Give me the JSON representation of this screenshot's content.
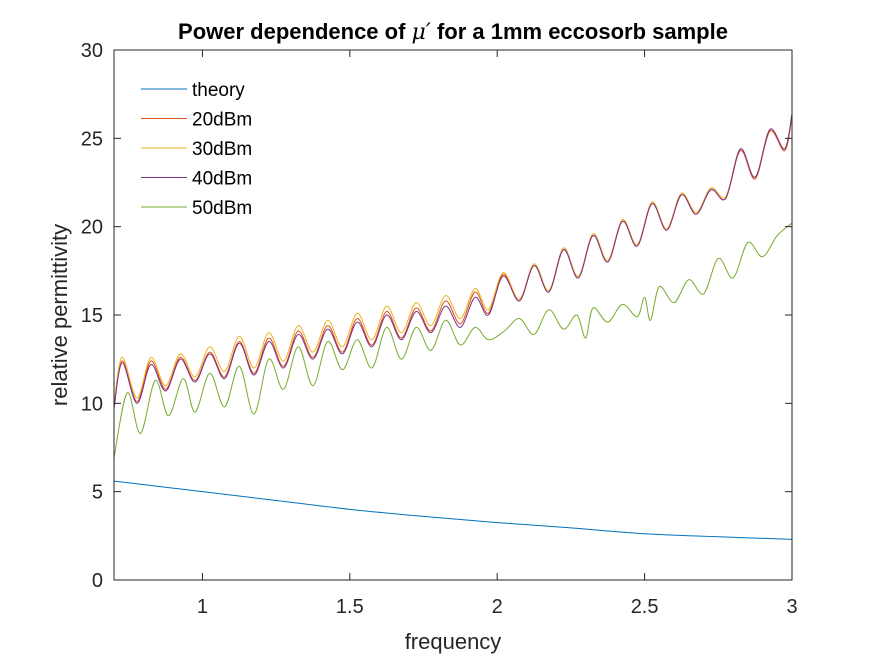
{
  "chart_data": {
    "type": "line",
    "title": {
      "before": "Power dependence of ",
      "symbol": "μ′",
      "after": " for a 1mm eccosorb sample"
    },
    "xlabel": "frequency",
    "ylabel": "relative permittivity",
    "xlim": [
      0.7,
      3
    ],
    "ylim": [
      0,
      30
    ],
    "xticks": [
      1,
      1.5,
      2,
      2.5,
      3
    ],
    "xtick_labels": [
      "1",
      "1.5",
      "2",
      "2.5",
      "3"
    ],
    "yticks": [
      0,
      5,
      10,
      15,
      20,
      25,
      30
    ],
    "ytick_labels": [
      "0",
      "5",
      "10",
      "15",
      "20",
      "25",
      "30"
    ],
    "grid": false,
    "legend_placement": "top-left",
    "series": [
      {
        "name": "theory",
        "color": "#0072BD",
        "points": [
          [
            0.7,
            5.6
          ],
          [
            0.85,
            5.3
          ],
          [
            1.0,
            5.0
          ],
          [
            1.25,
            4.5
          ],
          [
            1.5,
            4.0
          ],
          [
            1.75,
            3.6
          ],
          [
            2.0,
            3.25
          ],
          [
            2.25,
            2.95
          ],
          [
            2.5,
            2.62
          ],
          [
            2.75,
            2.45
          ],
          [
            3.0,
            2.3
          ]
        ]
      },
      {
        "name": "20dBm",
        "color": "#D95319",
        "points": [
          [
            0.7,
            9.8
          ],
          [
            0.728,
            12.4
          ],
          [
            0.778,
            10.1
          ],
          [
            0.825,
            12.4
          ],
          [
            0.875,
            10.8
          ],
          [
            0.925,
            12.6
          ],
          [
            0.975,
            11.3
          ],
          [
            1.025,
            12.9
          ],
          [
            1.075,
            11.5
          ],
          [
            1.125,
            13.5
          ],
          [
            1.175,
            11.7
          ],
          [
            1.225,
            13.7
          ],
          [
            1.275,
            12.1
          ],
          [
            1.325,
            14.1
          ],
          [
            1.375,
            12.6
          ],
          [
            1.425,
            14.4
          ],
          [
            1.475,
            12.9
          ],
          [
            1.525,
            14.8
          ],
          [
            1.575,
            13.3
          ],
          [
            1.625,
            15.2
          ],
          [
            1.675,
            13.7
          ],
          [
            1.725,
            15.4
          ],
          [
            1.775,
            14.1
          ],
          [
            1.825,
            15.8
          ],
          [
            1.875,
            14.5
          ],
          [
            1.925,
            16.3
          ],
          [
            1.97,
            15.1
          ],
          [
            2.02,
            17.3
          ],
          [
            2.075,
            15.8
          ],
          [
            2.125,
            17.8
          ],
          [
            2.175,
            16.3
          ],
          [
            2.225,
            18.7
          ],
          [
            2.275,
            17.1
          ],
          [
            2.325,
            19.5
          ],
          [
            2.375,
            18.0
          ],
          [
            2.425,
            20.3
          ],
          [
            2.475,
            18.9
          ],
          [
            2.525,
            21.3
          ],
          [
            2.575,
            19.8
          ],
          [
            2.625,
            21.8
          ],
          [
            2.675,
            20.7
          ],
          [
            2.725,
            22.1
          ],
          [
            2.775,
            21.6
          ],
          [
            2.825,
            24.3
          ],
          [
            2.875,
            22.7
          ],
          [
            2.925,
            25.4
          ],
          [
            2.975,
            24.3
          ],
          [
            3.0,
            26.2
          ]
        ]
      },
      {
        "name": "30dBm",
        "color": "#EDB120",
        "points": [
          [
            0.7,
            10.0
          ],
          [
            0.728,
            12.6
          ],
          [
            0.778,
            10.3
          ],
          [
            0.825,
            12.6
          ],
          [
            0.875,
            11.0
          ],
          [
            0.925,
            12.8
          ],
          [
            0.975,
            11.5
          ],
          [
            1.025,
            13.2
          ],
          [
            1.075,
            11.8
          ],
          [
            1.125,
            13.8
          ],
          [
            1.175,
            12.0
          ],
          [
            1.225,
            14.0
          ],
          [
            1.275,
            12.4
          ],
          [
            1.325,
            14.4
          ],
          [
            1.375,
            12.9
          ],
          [
            1.425,
            14.7
          ],
          [
            1.475,
            13.2
          ],
          [
            1.525,
            15.1
          ],
          [
            1.575,
            13.6
          ],
          [
            1.625,
            15.5
          ],
          [
            1.675,
            14.0
          ],
          [
            1.725,
            15.7
          ],
          [
            1.775,
            14.4
          ],
          [
            1.825,
            16.1
          ],
          [
            1.875,
            14.8
          ],
          [
            1.925,
            16.5
          ],
          [
            1.97,
            15.3
          ],
          [
            2.02,
            17.4
          ],
          [
            2.075,
            15.9
          ],
          [
            2.125,
            17.9
          ],
          [
            2.175,
            16.4
          ],
          [
            2.225,
            18.8
          ],
          [
            2.275,
            17.2
          ],
          [
            2.325,
            19.6
          ],
          [
            2.375,
            18.1
          ],
          [
            2.425,
            20.4
          ],
          [
            2.475,
            19.0
          ],
          [
            2.525,
            21.4
          ],
          [
            2.575,
            19.9
          ],
          [
            2.625,
            21.9
          ],
          [
            2.675,
            20.8
          ],
          [
            2.725,
            22.2
          ],
          [
            2.775,
            21.7
          ],
          [
            2.825,
            24.4
          ],
          [
            2.875,
            22.8
          ],
          [
            2.925,
            25.5
          ],
          [
            2.975,
            24.4
          ],
          [
            3.0,
            26.3
          ]
        ]
      },
      {
        "name": "40dBm",
        "color": "#7E2F8E",
        "points": [
          [
            0.7,
            9.7
          ],
          [
            0.728,
            12.3
          ],
          [
            0.778,
            10.0
          ],
          [
            0.825,
            12.2
          ],
          [
            0.875,
            10.7
          ],
          [
            0.925,
            12.5
          ],
          [
            0.975,
            11.2
          ],
          [
            1.025,
            12.8
          ],
          [
            1.075,
            11.4
          ],
          [
            1.125,
            13.4
          ],
          [
            1.175,
            11.6
          ],
          [
            1.225,
            13.5
          ],
          [
            1.275,
            12.0
          ],
          [
            1.325,
            13.9
          ],
          [
            1.375,
            12.5
          ],
          [
            1.425,
            14.2
          ],
          [
            1.475,
            12.8
          ],
          [
            1.525,
            14.6
          ],
          [
            1.575,
            13.2
          ],
          [
            1.625,
            15.0
          ],
          [
            1.675,
            13.6
          ],
          [
            1.725,
            15.2
          ],
          [
            1.775,
            14.0
          ],
          [
            1.825,
            15.5
          ],
          [
            1.875,
            14.3
          ],
          [
            1.925,
            16.0
          ],
          [
            1.97,
            15.0
          ],
          [
            2.02,
            17.2
          ],
          [
            2.075,
            15.8
          ],
          [
            2.125,
            17.8
          ],
          [
            2.175,
            16.3
          ],
          [
            2.225,
            18.7
          ],
          [
            2.275,
            17.1
          ],
          [
            2.325,
            19.5
          ],
          [
            2.375,
            18.0
          ],
          [
            2.425,
            20.3
          ],
          [
            2.475,
            18.9
          ],
          [
            2.525,
            21.3
          ],
          [
            2.575,
            19.8
          ],
          [
            2.625,
            21.8
          ],
          [
            2.675,
            20.7
          ],
          [
            2.725,
            22.1
          ],
          [
            2.775,
            21.6
          ],
          [
            2.825,
            24.4
          ],
          [
            2.875,
            22.8
          ],
          [
            2.925,
            25.5
          ],
          [
            2.975,
            24.4
          ],
          [
            3.0,
            26.4
          ]
        ]
      },
      {
        "name": "50dBm",
        "color": "#77AC30",
        "points": [
          [
            0.7,
            6.9
          ],
          [
            0.745,
            10.6
          ],
          [
            0.79,
            8.3
          ],
          [
            0.84,
            11.3
          ],
          [
            0.885,
            9.3
          ],
          [
            0.935,
            11.4
          ],
          [
            0.975,
            9.5
          ],
          [
            1.025,
            11.7
          ],
          [
            1.075,
            9.8
          ],
          [
            1.125,
            12.1
          ],
          [
            1.175,
            9.4
          ],
          [
            1.225,
            12.5
          ],
          [
            1.275,
            10.8
          ],
          [
            1.325,
            13.2
          ],
          [
            1.375,
            11.0
          ],
          [
            1.425,
            13.5
          ],
          [
            1.475,
            11.9
          ],
          [
            1.525,
            13.6
          ],
          [
            1.575,
            12.0
          ],
          [
            1.625,
            14.3
          ],
          [
            1.675,
            12.5
          ],
          [
            1.725,
            14.3
          ],
          [
            1.775,
            13.0
          ],
          [
            1.825,
            14.7
          ],
          [
            1.875,
            13.3
          ],
          [
            1.925,
            14.3
          ],
          [
            1.97,
            13.6
          ],
          [
            2.025,
            14.1
          ],
          [
            2.075,
            14.8
          ],
          [
            2.125,
            13.9
          ],
          [
            2.175,
            15.3
          ],
          [
            2.225,
            14.2
          ],
          [
            2.27,
            15.0
          ],
          [
            2.3,
            13.7
          ],
          [
            2.325,
            15.4
          ],
          [
            2.375,
            14.6
          ],
          [
            2.425,
            15.6
          ],
          [
            2.475,
            14.9
          ],
          [
            2.5,
            16.0
          ],
          [
            2.52,
            14.7
          ],
          [
            2.55,
            16.6
          ],
          [
            2.6,
            15.7
          ],
          [
            2.65,
            17.0
          ],
          [
            2.7,
            16.2
          ],
          [
            2.75,
            18.2
          ],
          [
            2.8,
            17.1
          ],
          [
            2.85,
            19.1
          ],
          [
            2.9,
            18.3
          ],
          [
            2.95,
            19.5
          ],
          [
            3.0,
            20.2
          ]
        ]
      }
    ]
  }
}
